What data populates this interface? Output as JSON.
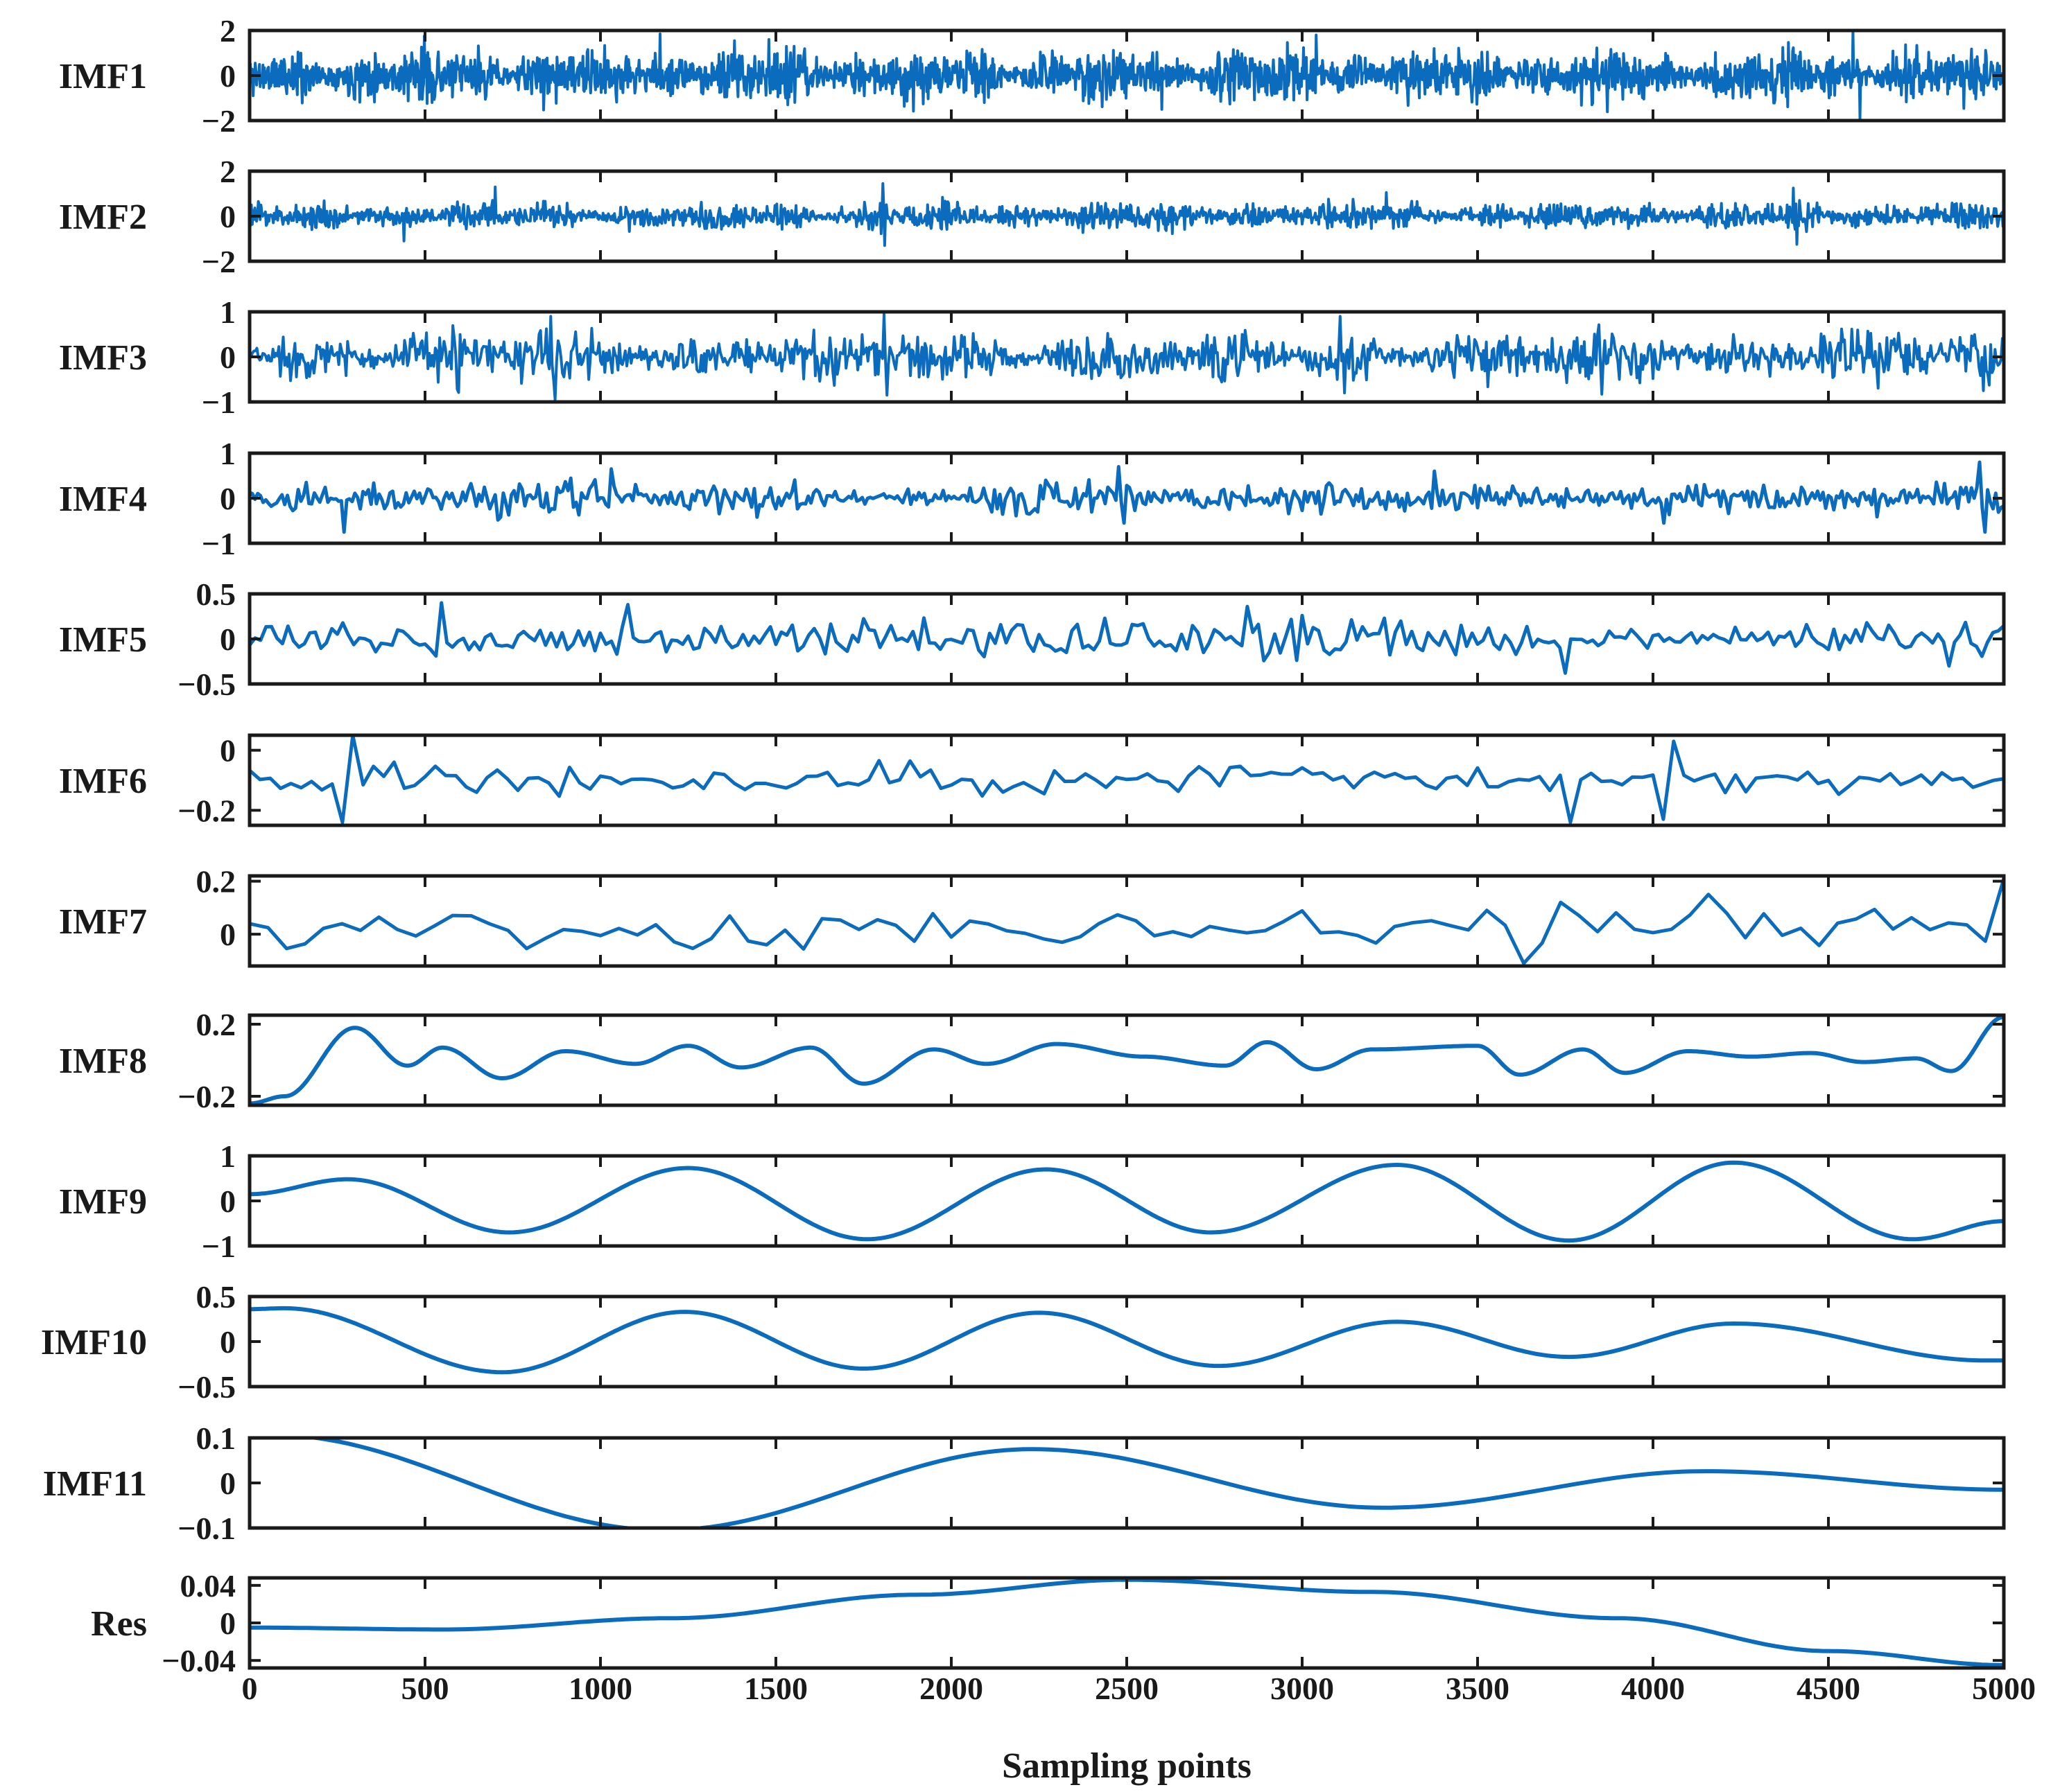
{
  "chart_data": {
    "type": "line",
    "xlabel": "Sampling points",
    "xlim": [
      0,
      5000
    ],
    "x_ticks": [
      0,
      500,
      1000,
      1500,
      2000,
      2500,
      3000,
      3500,
      4000,
      4500,
      5000
    ],
    "x_tick_labels": [
      "0",
      "500",
      "1000",
      "1500",
      "2000",
      "2500",
      "3000",
      "3500",
      "4000",
      "4500",
      "5000"
    ],
    "line_color": "#0b6bbd",
    "panels": [
      {
        "ylabel": "IMF1",
        "ylim": [
          -2,
          2
        ],
        "y_ticks": [
          2,
          0,
          -2
        ],
        "y_tick_labels": [
          "2",
          "0",
          "−2"
        ],
        "signal": {
          "kind": "noise",
          "seed": 11,
          "n": 2500,
          "amp": 0.65,
          "maxabs": 1.9,
          "spikes": [
            [
              1170,
              1.85
            ],
            [
              1480,
              1.6
            ],
            [
              2600,
              -1.5
            ],
            [
              3040,
              1.8
            ],
            [
              4570,
              2.0
            ],
            [
              4590,
              -1.9
            ]
          ]
        }
      },
      {
        "ylabel": "IMF2",
        "ylim": [
          -2,
          2
        ],
        "y_ticks": [
          2,
          0,
          -2
        ],
        "y_tick_labels": [
          "2",
          "0",
          "−2"
        ],
        "signal": {
          "kind": "noise",
          "seed": 23,
          "n": 2000,
          "amp": 0.33,
          "maxabs": 1.5,
          "spikes": [
            [
              440,
              -1.1
            ],
            [
              700,
              1.3
            ],
            [
              1805,
              1.45
            ],
            [
              1810,
              -1.3
            ],
            [
              3240,
              1.05
            ],
            [
              4400,
              1.25
            ],
            [
              4410,
              -1.25
            ]
          ]
        }
      },
      {
        "ylabel": "IMF3",
        "ylim": [
          -1,
          1
        ],
        "y_ticks": [
          1,
          0,
          -1
        ],
        "y_tick_labels": [
          "1",
          "0",
          "−1"
        ],
        "signal": {
          "kind": "noise",
          "seed": 37,
          "n": 1200,
          "amp": 0.32,
          "maxabs": 0.95,
          "spikes": [
            [
              860,
              0.9
            ],
            [
              870,
              -0.95
            ],
            [
              1810,
              0.95
            ],
            [
              1815,
              -0.85
            ],
            [
              3110,
              0.9
            ],
            [
              3120,
              -0.8
            ],
            [
              4940,
              -0.75
            ]
          ]
        }
      },
      {
        "ylabel": "IMF4",
        "ylim": [
          -1,
          1
        ],
        "y_ticks": [
          1,
          0,
          -1
        ],
        "y_tick_labels": [
          "1",
          "0",
          "−1"
        ],
        "signal": {
          "kind": "noise",
          "seed": 41,
          "n": 650,
          "amp": 0.22,
          "maxabs": 0.95,
          "spikes": [
            [
              270,
              -0.75
            ],
            [
              1030,
              0.65
            ],
            [
              2480,
              0.7
            ],
            [
              2490,
              -0.55
            ],
            [
              3380,
              0.6
            ],
            [
              4030,
              -0.55
            ],
            [
              4930,
              0.8
            ],
            [
              4950,
              -0.75
            ]
          ]
        }
      },
      {
        "ylabel": "IMF5",
        "ylim": [
          -0.5,
          0.5
        ],
        "y_ticks": [
          0.5,
          0,
          -0.5
        ],
        "y_tick_labels": [
          "0.5",
          "0",
          "−0.5"
        ],
        "signal": {
          "kind": "noise",
          "seed": 53,
          "n": 320,
          "amp": 0.13,
          "maxabs": 0.45,
          "spikes": [
            [
              550,
              0.4
            ],
            [
              1080,
              -0.36
            ],
            [
              1080,
              0.38
            ],
            [
              2850,
              0.36
            ],
            [
              3750,
              0.42
            ],
            [
              3750,
              -0.38
            ],
            [
              4840,
              -0.3
            ]
          ]
        }
      },
      {
        "ylabel": "IMF6",
        "ylim": [
          -0.25,
          0.05
        ],
        "y_ticks": [
          0,
          -0.2
        ],
        "y_tick_labels": [
          "0",
          "−0.2"
        ],
        "signal": {
          "kind": "noise",
          "seed": 67,
          "n": 170,
          "amp": 0.035,
          "offset": -0.1,
          "maxabs": 0.14,
          "spikes": [
            [
              300,
              0.05
            ],
            [
              250,
              -0.24
            ],
            [
              3760,
              -0.24
            ],
            [
              4020,
              -0.23
            ],
            [
              4070,
              0.03
            ]
          ]
        }
      },
      {
        "ylabel": "IMF7",
        "ylim": [
          -0.12,
          0.22
        ],
        "y_ticks": [
          0.2,
          0
        ],
        "y_tick_labels": [
          "0.2",
          "0"
        ],
        "signal": {
          "kind": "noise",
          "seed": 79,
          "n": 95,
          "amp": 0.045,
          "offset": 0.02,
          "maxabs": 0.12,
          "spikes": [
            [
              3610,
              -0.11
            ],
            [
              3760,
              -0.12
            ],
            [
              3760,
              0.12
            ],
            [
              4160,
              0.15
            ],
            [
              4980,
              0.21
            ]
          ]
        }
      },
      {
        "ylabel": "IMF8",
        "ylim": [
          -0.25,
          0.25
        ],
        "y_ticks": [
          0.2,
          -0.2
        ],
        "y_tick_labels": [
          "0.2",
          "−0.2"
        ],
        "signal": {
          "kind": "keys",
          "x": [
            0,
            100,
            300,
            450,
            550,
            720,
            900,
            1100,
            1250,
            1400,
            1600,
            1750,
            1950,
            2100,
            2300,
            2550,
            2780,
            2900,
            3040,
            3200,
            3500,
            3620,
            3800,
            3920,
            4100,
            4280,
            4450,
            4600,
            4750,
            4850,
            5000
          ],
          "y": [
            -0.24,
            -0.2,
            0.18,
            -0.03,
            0.07,
            -0.1,
            0.05,
            -0.02,
            0.08,
            -0.04,
            0.07,
            -0.13,
            0.06,
            -0.02,
            0.09,
            0.02,
            -0.03,
            0.1,
            -0.05,
            0.06,
            0.08,
            -0.08,
            0.06,
            -0.07,
            0.05,
            0.02,
            0.04,
            -0.01,
            0.01,
            -0.06,
            0.24
          ]
        }
      },
      {
        "ylabel": "IMF9",
        "ylim": [
          -1,
          1
        ],
        "y_ticks": [
          1,
          0,
          -1
        ],
        "y_tick_labels": [
          "1",
          "0",
          "−1"
        ],
        "signal": {
          "kind": "keys",
          "x": [
            0,
            280,
            740,
            1250,
            1760,
            2270,
            2740,
            3270,
            3760,
            4230,
            4740,
            5000
          ],
          "y": [
            0.15,
            0.48,
            -0.7,
            0.73,
            -0.85,
            0.7,
            -0.7,
            0.8,
            -0.88,
            0.85,
            -0.85,
            -0.45
          ]
        }
      },
      {
        "ylabel": "IMF10",
        "ylim": [
          -0.5,
          0.5
        ],
        "y_ticks": [
          0.5,
          0,
          -0.5
        ],
        "y_tick_labels": [
          "0.5",
          "0",
          "−0.5"
        ],
        "signal": {
          "kind": "keys",
          "x": [
            0,
            100,
            720,
            1240,
            1750,
            2250,
            2760,
            3270,
            3760,
            4230,
            4950,
            5000
          ],
          "y": [
            0.36,
            0.37,
            -0.34,
            0.33,
            -0.3,
            0.32,
            -0.27,
            0.22,
            -0.17,
            0.2,
            -0.21,
            -0.21
          ]
        }
      },
      {
        "ylabel": "IMF11",
        "ylim": [
          -0.1,
          0.1
        ],
        "y_ticks": [
          0.1,
          0,
          -0.1
        ],
        "y_tick_labels": [
          "0.1",
          "0",
          "−0.1"
        ],
        "signal": {
          "kind": "keys",
          "x": [
            0,
            60,
            1180,
            2230,
            3230,
            4150,
            5000
          ],
          "y": [
            0.105,
            0.107,
            -0.105,
            0.075,
            -0.055,
            0.026,
            -0.015
          ]
        }
      },
      {
        "ylabel": "Res",
        "ylim": [
          -0.048,
          0.048
        ],
        "y_ticks": [
          0.04,
          0,
          -0.04
        ],
        "y_tick_labels": [
          "0.04",
          "0",
          "−0.04"
        ],
        "signal": {
          "kind": "keys",
          "x": [
            0,
            550,
            1200,
            1900,
            2500,
            3200,
            3900,
            4500,
            5000
          ],
          "y": [
            -0.005,
            -0.007,
            0.005,
            0.03,
            0.046,
            0.033,
            0.005,
            -0.03,
            -0.045
          ]
        }
      }
    ]
  }
}
